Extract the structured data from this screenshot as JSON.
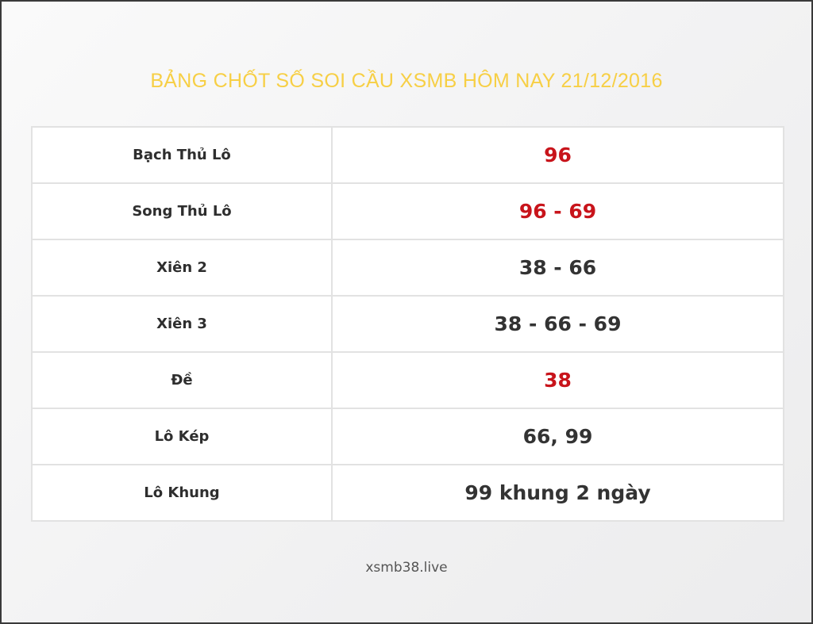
{
  "title": "BẢNG CHỐT SỐ SOI CẦU XSMB HÔM NAY 21/12/2016",
  "rows": [
    {
      "label": "Bạch Thủ Lô",
      "value": "96",
      "highlight": true
    },
    {
      "label": "Song Thủ Lô",
      "value": "96 - 69",
      "highlight": true
    },
    {
      "label": "Xiên 2",
      "value": "38 - 66",
      "highlight": false
    },
    {
      "label": "Xiên 3",
      "value": "38 - 66 - 69",
      "highlight": false
    },
    {
      "label": "Đề",
      "value": "38",
      "highlight": true
    },
    {
      "label": "Lô Kép",
      "value": "66, 99",
      "highlight": false
    },
    {
      "label": "Lô Khung",
      "value": "99 khung 2 ngày",
      "highlight": false
    }
  ],
  "footer": "xsmb38.live",
  "colors": {
    "title": "#f7cf45",
    "highlight": "#c8141b",
    "text": "#333333"
  }
}
